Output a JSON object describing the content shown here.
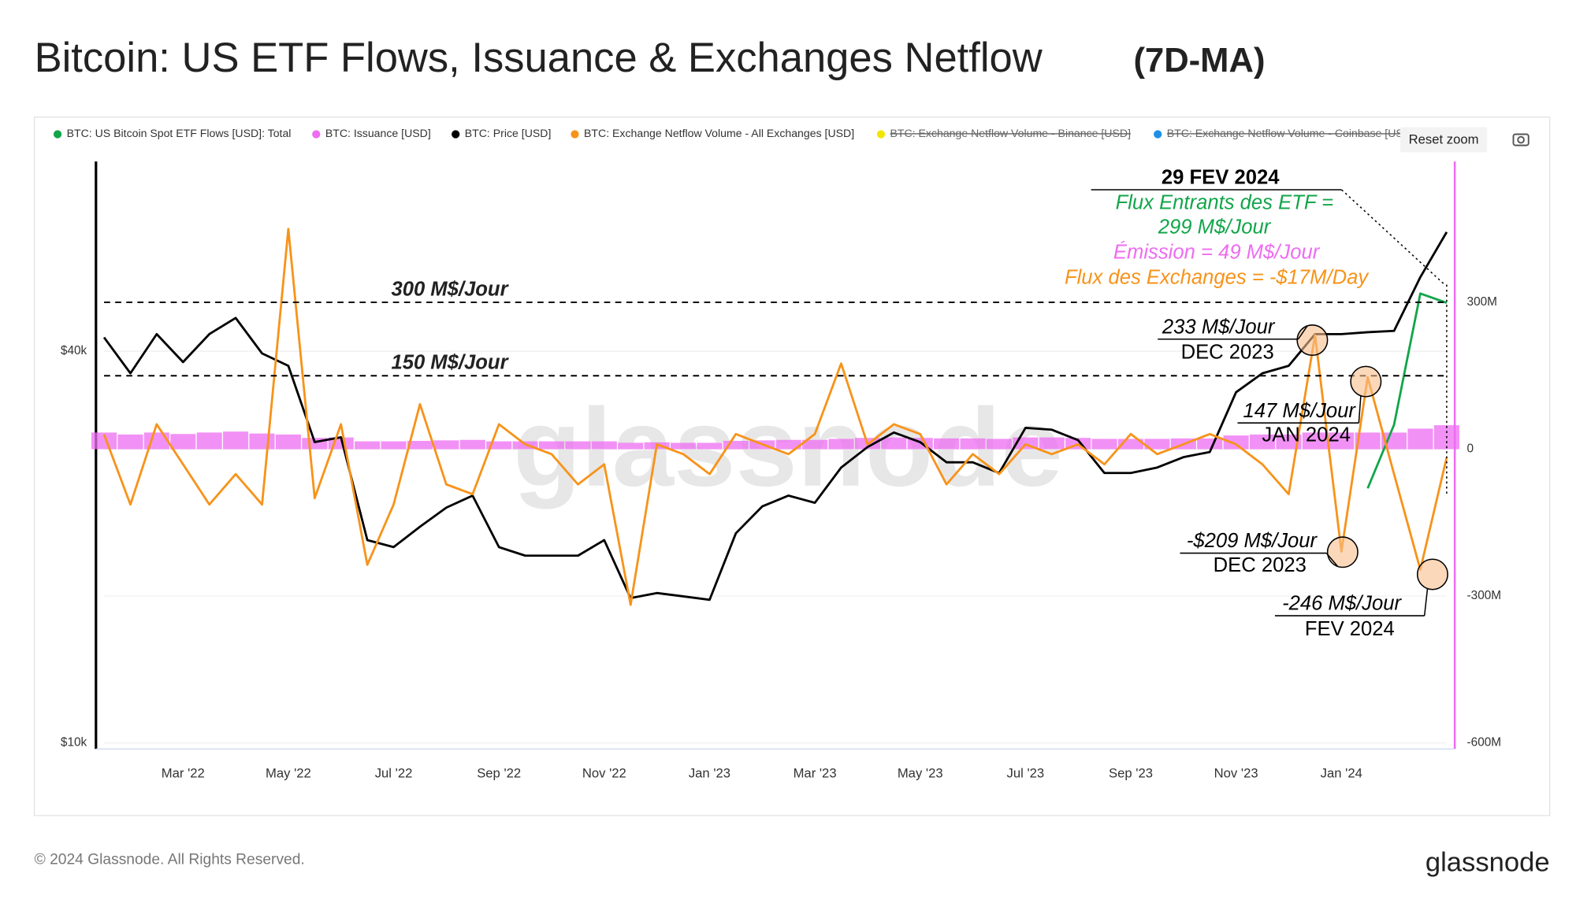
{
  "chart_data": {
    "type": "line",
    "title": "Bitcoin: US ETF Flows, Issuance  & Exchanges Netflow",
    "title_suffix": "(7D-MA)",
    "watermark": "glassnode",
    "reset_zoom": "Reset zoom",
    "footer": "© 2024 Glassnode. All Rights Reserved.",
    "brand": "glassnode",
    "categories": [
      null,
      null,
      null,
      "Mar '22",
      null,
      null,
      null,
      "May '22",
      null,
      null,
      null,
      "Jul '22",
      null,
      null,
      null,
      "Sep '22",
      null,
      null,
      null,
      "Nov '22",
      null,
      null,
      null,
      "Jan '23",
      null,
      null,
      null,
      "Mar '23",
      null,
      null,
      null,
      "May '23",
      null,
      null,
      null,
      "Jul '23",
      null,
      null,
      null,
      "Sep '23",
      null,
      null,
      null,
      "Nov '23",
      null,
      null,
      null,
      "Jan '24",
      null,
      null,
      null,
      null
    ],
    "ylog": true,
    "ylim": [
      10000,
      80000
    ],
    "yticks": [
      {
        "value": 10000,
        "label": "$10k"
      },
      {
        "value": 40000,
        "label": "$40k"
      }
    ],
    "y2lim": [
      -600000000,
      600000000
    ],
    "y2ticks": [
      {
        "value": -600000000,
        "label": "-600M"
      },
      {
        "value": -300000000,
        "label": "-300M"
      },
      0,
      {
        "value": 300000000,
        "label": "300M"
      }
    ],
    "series": [
      {
        "name": "BTC: US Bitcoin Spot ETF Flows [USD]: Total",
        "color": "#12a54a",
        "axis": "y2",
        "style": "line",
        "values": [
          null,
          null,
          null,
          null,
          null,
          null,
          null,
          null,
          null,
          null,
          null,
          null,
          null,
          null,
          null,
          null,
          null,
          null,
          null,
          null,
          null,
          null,
          null,
          null,
          null,
          null,
          null,
          null,
          null,
          null,
          null,
          null,
          null,
          null,
          null,
          null,
          null,
          null,
          null,
          null,
          null,
          null,
          null,
          null,
          null,
          null,
          null,
          null,
          -80000000,
          50000000,
          318000000,
          299000000
        ]
      },
      {
        "name": "BTC: Issuance [USD]",
        "color": "#ee6cf2",
        "axis": "y2",
        "style": "bar",
        "values": [
          34000000,
          30000000,
          34000000,
          31000000,
          34000000,
          36000000,
          32000000,
          30000000,
          23000000,
          24000000,
          16000000,
          16000000,
          17000000,
          18000000,
          19000000,
          16000000,
          16000000,
          16000000,
          16000000,
          16000000,
          13000000,
          14000000,
          13000000,
          13000000,
          17000000,
          18000000,
          19000000,
          19000000,
          21000000,
          23000000,
          24000000,
          23000000,
          22000000,
          22000000,
          21000000,
          24000000,
          24000000,
          23000000,
          21000000,
          21000000,
          21000000,
          22000000,
          22000000,
          28000000,
          30000000,
          30000000,
          34000000,
          34000000,
          34000000,
          34000000,
          42000000,
          49000000
        ]
      },
      {
        "name": "BTC: Price [USD]",
        "color": "#000000",
        "axis": "y",
        "style": "line",
        "values": [
          42000,
          37000,
          42500,
          38500,
          42500,
          45000,
          39700,
          38000,
          29000,
          29500,
          20500,
          20000,
          21500,
          23000,
          24000,
          20000,
          19400,
          19400,
          19400,
          20500,
          16700,
          17000,
          16800,
          16600,
          21000,
          23100,
          24000,
          23400,
          26500,
          28500,
          30000,
          29000,
          27000,
          27000,
          26000,
          30500,
          30300,
          29200,
          26000,
          26000,
          26500,
          27500,
          28000,
          34600,
          37000,
          38000,
          42500,
          42500,
          42800,
          43000,
          52000,
          61000
        ]
      },
      {
        "name": "BTC: Exchange Netflow Volume - All Exchanges [USD]",
        "color": "#f7931a",
        "axis": "y2",
        "style": "line",
        "values": [
          30000000,
          -113000000,
          51000000,
          -31000000,
          -113000000,
          -51000000,
          -113000000,
          450000000,
          -100000000,
          51000000,
          -236000000,
          -113000000,
          92000000,
          -72000000,
          -92000000,
          51000000,
          10000000,
          -10000000,
          -72000000,
          -31000000,
          -318000000,
          10000000,
          -10000000,
          -51000000,
          31000000,
          10000000,
          -10000000,
          31000000,
          175000000,
          10000000,
          51000000,
          31000000,
          -72000000,
          -10000000,
          -51000000,
          10000000,
          -10000000,
          10000000,
          -31000000,
          31000000,
          -10000000,
          10000000,
          31000000,
          10000000,
          -31000000,
          -92000000,
          233000000,
          -209000000,
          147000000,
          -51000000,
          -246000000,
          -17000000
        ]
      }
    ],
    "legend_hidden": [
      {
        "name": "BTC: Exchange Netflow Volume - Binance [USD]",
        "color": "#f2e600"
      },
      {
        "name": "BTC: Exchange Netflow Volume - Coinbase [US",
        "color": "#1f8fe6"
      }
    ],
    "reference_lines": [
      {
        "value": 300000000,
        "label": "300 M$/Jour"
      },
      {
        "value": 150000000,
        "label": "150 M$/Jour"
      }
    ],
    "annotations": [
      {
        "lines": [
          "29 FEV 2024",
          "Flux Entrants des ETF =",
          "299 M$/Jour",
          "Émission = 49 M$/Jour",
          "Flux des Exchanges = -$17M/Day"
        ]
      },
      {
        "lines": [
          "233 M$/Jour",
          "DEC 2023"
        ]
      },
      {
        "lines": [
          "147 M$/Jour",
          "JAN 2024"
        ]
      },
      {
        "lines": [
          "-$209 M$/Jour",
          "DEC 2023"
        ]
      },
      {
        "lines": [
          "-246 M$/Jour",
          "FEV 2024"
        ]
      }
    ]
  }
}
